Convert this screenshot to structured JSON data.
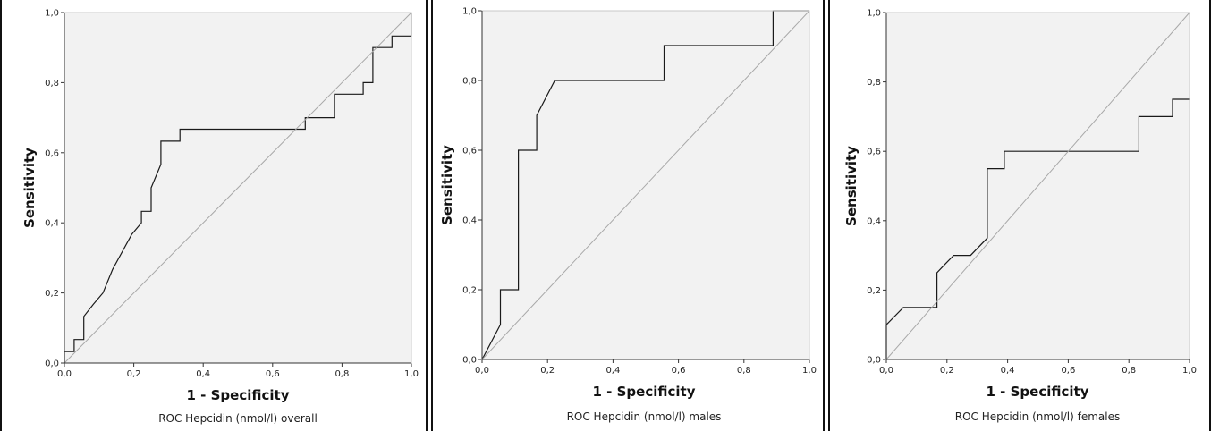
{
  "chart_data": [
    {
      "type": "line",
      "caption": "ROC Hepcidin (nmol/l) overall",
      "xlabel": "1 - Specificity",
      "ylabel": "Sensitivity",
      "xlim": [
        0,
        1
      ],
      "ylim": [
        0,
        1
      ],
      "ticks": [
        "0,0",
        "0,2",
        "0,4",
        "0,6",
        "0,8",
        "1,0"
      ],
      "series": [
        {
          "kind": "roc",
          "x": [
            0,
            0,
            0.028,
            0.028,
            0.056,
            0.056,
            0.083,
            0.083,
            0.111,
            0.111,
            0.139,
            0.139,
            0.194,
            0.194,
            0.222,
            0.222,
            0.25,
            0.25,
            0.278,
            0.278,
            0.333,
            0.333,
            0.694,
            0.694,
            0.778,
            0.778,
            0.861,
            0.861,
            0.889,
            0.889,
            0.944,
            0.944,
            1.0,
            1.0
          ],
          "y": [
            0,
            0.033,
            0.033,
            0.067,
            0.067,
            0.133,
            0.167,
            0.167,
            0.2,
            0.2,
            0.267,
            0.267,
            0.367,
            0.367,
            0.4,
            0.433,
            0.433,
            0.5,
            0.567,
            0.633,
            0.633,
            0.667,
            0.667,
            0.7,
            0.7,
            0.767,
            0.767,
            0.8,
            0.8,
            0.9,
            0.9,
            0.933,
            0.933,
            1.0
          ]
        },
        {
          "kind": "reference",
          "x": [
            0,
            1
          ],
          "y": [
            0,
            1
          ]
        }
      ]
    },
    {
      "type": "line",
      "caption": "ROC  Hepcidin (nmol/l) males",
      "xlabel": "1 - Specificity",
      "ylabel": "Sensitivity",
      "xlim": [
        0,
        1
      ],
      "ylim": [
        0,
        1
      ],
      "ticks": [
        "0,0",
        "0,2",
        "0,4",
        "0,6",
        "0,8",
        "1,0"
      ],
      "series": [
        {
          "kind": "roc",
          "x": [
            0,
            0.056,
            0.056,
            0.111,
            0.111,
            0.167,
            0.167,
            0.222,
            0.556,
            0.556,
            0.889,
            0.889,
            1.0
          ],
          "y": [
            0,
            0.1,
            0.2,
            0.2,
            0.6,
            0.6,
            0.7,
            0.8,
            0.8,
            0.9,
            0.9,
            1.0,
            1.0
          ]
        },
        {
          "kind": "reference",
          "x": [
            0,
            1
          ],
          "y": [
            0,
            1
          ]
        }
      ]
    },
    {
      "type": "line",
      "caption": "ROC  Hepcidin (nmol/l) females",
      "xlabel": "1 - Specificity",
      "ylabel": "Sensitivity",
      "xlim": [
        0,
        1
      ],
      "ylim": [
        0,
        1
      ],
      "ticks": [
        "0,0",
        "0,2",
        "0,4",
        "0,6",
        "0,8",
        "1,0"
      ],
      "series": [
        {
          "kind": "roc",
          "x": [
            0,
            0,
            0.056,
            0.167,
            0.167,
            0.194,
            0.222,
            0.278,
            0.333,
            0.333,
            0.389,
            0.389,
            0.833,
            0.833,
            0.944,
            0.944,
            1.0
          ],
          "y": [
            0,
            0.1,
            0.15,
            0.15,
            0.25,
            0.275,
            0.3,
            0.3,
            0.35,
            0.55,
            0.55,
            0.6,
            0.6,
            0.7,
            0.7,
            0.75,
            0.75
          ]
        },
        {
          "kind": "reference",
          "x": [
            0,
            1
          ],
          "y": [
            0,
            1
          ]
        }
      ]
    }
  ]
}
